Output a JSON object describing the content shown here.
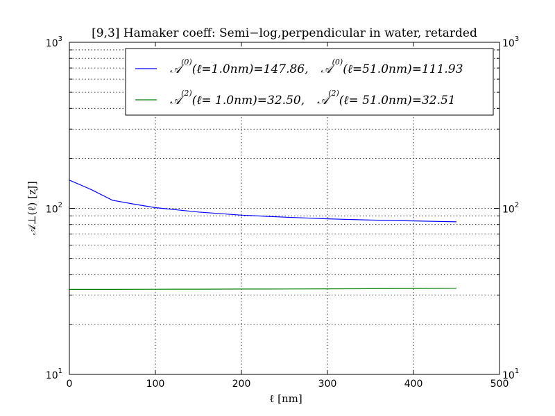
{
  "chart_data": {
    "type": "line",
    "title": "[9,3]  Hamaker coeff: Semi−log,perpendicular in water, retarded",
    "xlabel": "ℓ   [nm]",
    "ylabel": "𝒜⊥(ℓ)   [zJ]",
    "xlim": [
      0,
      500
    ],
    "ylim": [
      10,
      1000
    ],
    "yscale": "log",
    "grid": true,
    "legend_position": "top",
    "x_ticks": [
      "0",
      "100",
      "200",
      "300",
      "400",
      "500"
    ],
    "y_ticks": [
      {
        "value": 10,
        "base": "10",
        "exp": "1"
      },
      {
        "value": 100,
        "base": "10",
        "exp": "2"
      },
      {
        "value": 1000,
        "base": "10",
        "exp": "3"
      }
    ],
    "series": [
      {
        "name": "𝒜(0)(ℓ=1.0nm)=147.86,    𝒜(0)(ℓ=51.0nm)=111.93",
        "legend_parts": {
          "sym": "𝒜",
          "sup": "(0)",
          "a": "(ℓ=1.0nm)=147.86,",
          "b": "(ℓ=51.0nm)=111.93"
        },
        "color": "#0000ff",
        "x": [
          0,
          25,
          50,
          75,
          100,
          150,
          200,
          250,
          300,
          350,
          400,
          450
        ],
        "y": [
          147.86,
          130,
          111.93,
          106,
          101,
          95,
          91,
          88.5,
          86.5,
          85,
          84,
          83
        ]
      },
      {
        "name": "𝒜(2)(ℓ= 1.0nm)=32.50,    𝒜(2)(ℓ= 51.0nm)=32.51",
        "legend_parts": {
          "sym": "𝒜",
          "sup": "(2)",
          "a": "(ℓ= 1.0nm)=32.50,",
          "b": "(ℓ= 51.0nm)=32.51"
        },
        "color": "#008000",
        "x": [
          0,
          50,
          100,
          150,
          200,
          250,
          300,
          350,
          400,
          450
        ],
        "y": [
          32.5,
          32.51,
          32.55,
          32.6,
          32.65,
          32.7,
          32.75,
          32.8,
          32.9,
          33.0
        ]
      }
    ]
  }
}
